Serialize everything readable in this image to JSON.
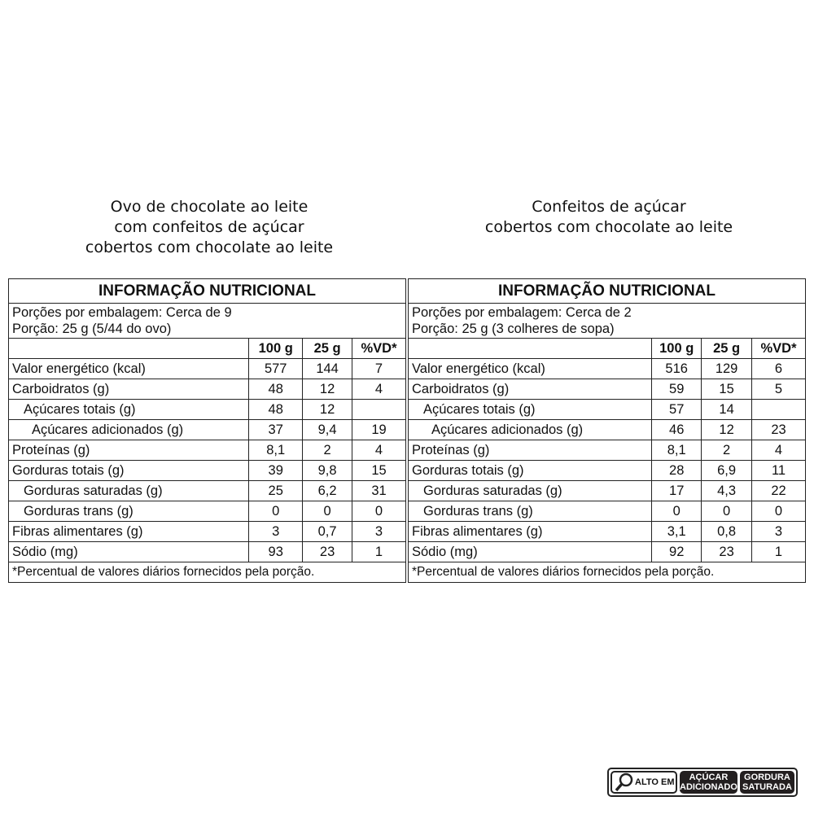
{
  "left": {
    "heading": [
      "Ovo de chocolate ao leite",
      "com confeitos de açúcar",
      "cobertos com chocolate ao leite"
    ],
    "title": "INFORMAÇÃO NUTRICIONAL",
    "portions": "Porções por embalagem: Cerca de 9",
    "portion": "Porção: 25 g (5/44 do ovo)",
    "columns": [
      "100 g",
      "25 g",
      "%VD*"
    ],
    "rows": [
      [
        "Valor energético (kcal)",
        "577",
        "144",
        "7"
      ],
      [
        "Carboidratos (g)",
        "48",
        "12",
        "4"
      ],
      [
        "Açúcares totais (g)",
        "48",
        "12",
        ""
      ],
      [
        "Açúcares adicionados (g)",
        "37",
        "9,4",
        "19"
      ],
      [
        "Proteínas (g)",
        "8,1",
        "2",
        "4"
      ],
      [
        "Gorduras totais (g)",
        "39",
        "9,8",
        "15"
      ],
      [
        "Gorduras saturadas (g)",
        "25",
        "6,2",
        "31"
      ],
      [
        "Gorduras trans (g)",
        "0",
        "0",
        "0"
      ],
      [
        "Fibras alimentares (g)",
        "3",
        "0,7",
        "3"
      ],
      [
        "Sódio (mg)",
        "93",
        "23",
        "1"
      ]
    ],
    "footnote": "*Percentual de valores diários fornecidos pela porção."
  },
  "right": {
    "heading": [
      "Confeitos de açúcar",
      "cobertos com chocolate ao leite"
    ],
    "title": "INFORMAÇÃO NUTRICIONAL",
    "portions": "Porções por embalagem: Cerca de 2",
    "portion": "Porção: 25 g (3 colheres de sopa)",
    "columns": [
      "100 g",
      "25 g",
      "%VD*"
    ],
    "rows": [
      [
        "Valor energético (kcal)",
        "516",
        "129",
        "6"
      ],
      [
        "Carboidratos (g)",
        "59",
        "15",
        "5"
      ],
      [
        "Açúcares totais (g)",
        "57",
        "14",
        ""
      ],
      [
        "Açúcares adicionados (g)",
        "46",
        "12",
        "23"
      ],
      [
        "Proteínas (g)",
        "8,1",
        "2",
        "4"
      ],
      [
        "Gorduras totais (g)",
        "28",
        "6,9",
        "11"
      ],
      [
        "Gorduras saturadas (g)",
        "17",
        "4,3",
        "22"
      ],
      [
        "Gorduras trans (g)",
        "0",
        "0",
        "0"
      ],
      [
        "Fibras alimentares (g)",
        "3,1",
        "0,8",
        "3"
      ],
      [
        "Sódio (mg)",
        "92",
        "23",
        "1"
      ]
    ],
    "footnote": "*Percentual de valores diários fornecidos pela porção."
  },
  "badge": {
    "icon": "magnifier-icon",
    "alto": "ALTO EM",
    "items": [
      [
        "AÇÚCAR",
        "ADICIONADO"
      ],
      [
        "GORDURA",
        "SATURADA"
      ]
    ]
  }
}
